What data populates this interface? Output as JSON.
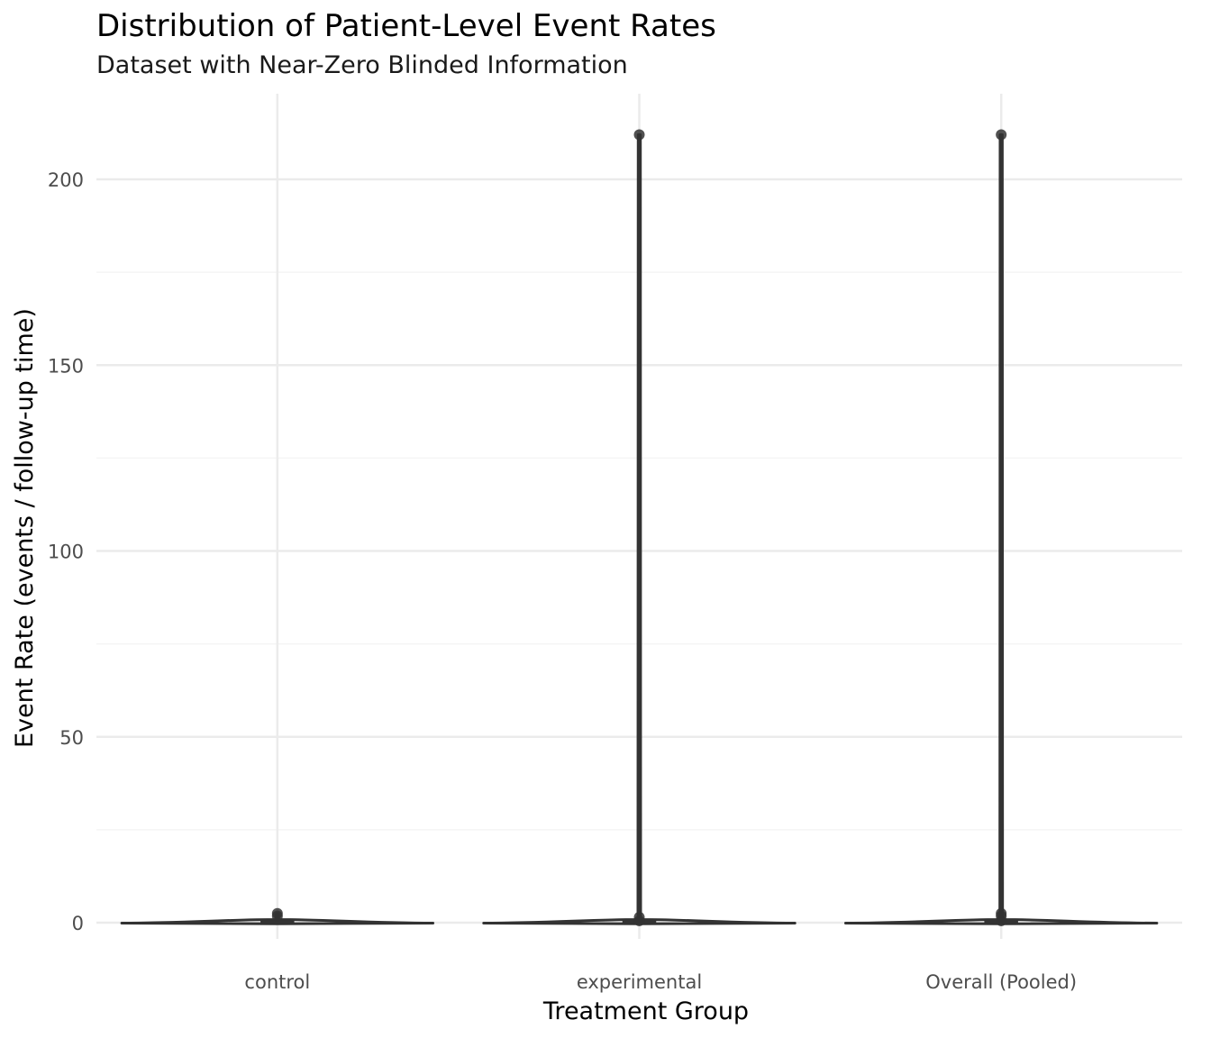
{
  "title": "Distribution of Patient-Level Event Rates",
  "subtitle": "Dataset with Near-Zero Blinded Information",
  "chart_data": {
    "type": "violin",
    "title": "Distribution of Patient-Level Event Rates",
    "subtitle": "Dataset with Near-Zero Blinded Information",
    "xlabel": "Treatment Group",
    "ylabel": "Event Rate (events / follow-up time)",
    "categories": [
      "control",
      "experimental",
      "Overall (Pooled)"
    ],
    "ylim": [
      -10,
      222
    ],
    "yticks": [
      0,
      50,
      100,
      150,
      200
    ],
    "grid": true,
    "legend": "none",
    "groups": [
      {
        "name": "control",
        "max": 2.5,
        "box": {
          "q1": 0,
          "median": 0.2,
          "q3": 0.5
        },
        "outliers": [
          2.5,
          1.8
        ]
      },
      {
        "name": "experimental",
        "max": 212,
        "box": {
          "q1": 0,
          "median": 0.3,
          "q3": 0.6
        },
        "outliers": [
          212,
          1.5,
          0.5
        ]
      },
      {
        "name": "Overall (Pooled)",
        "max": 212,
        "box": {
          "q1": 0,
          "median": 0.3,
          "q3": 0.6
        },
        "outliers": [
          212,
          2.5,
          1.8,
          0.5
        ]
      }
    ],
    "colors": {
      "violin_stroke": "#333333",
      "point": "#333333",
      "grid_major": "#ebebeb",
      "grid_minor": "#f5f5f5"
    }
  }
}
